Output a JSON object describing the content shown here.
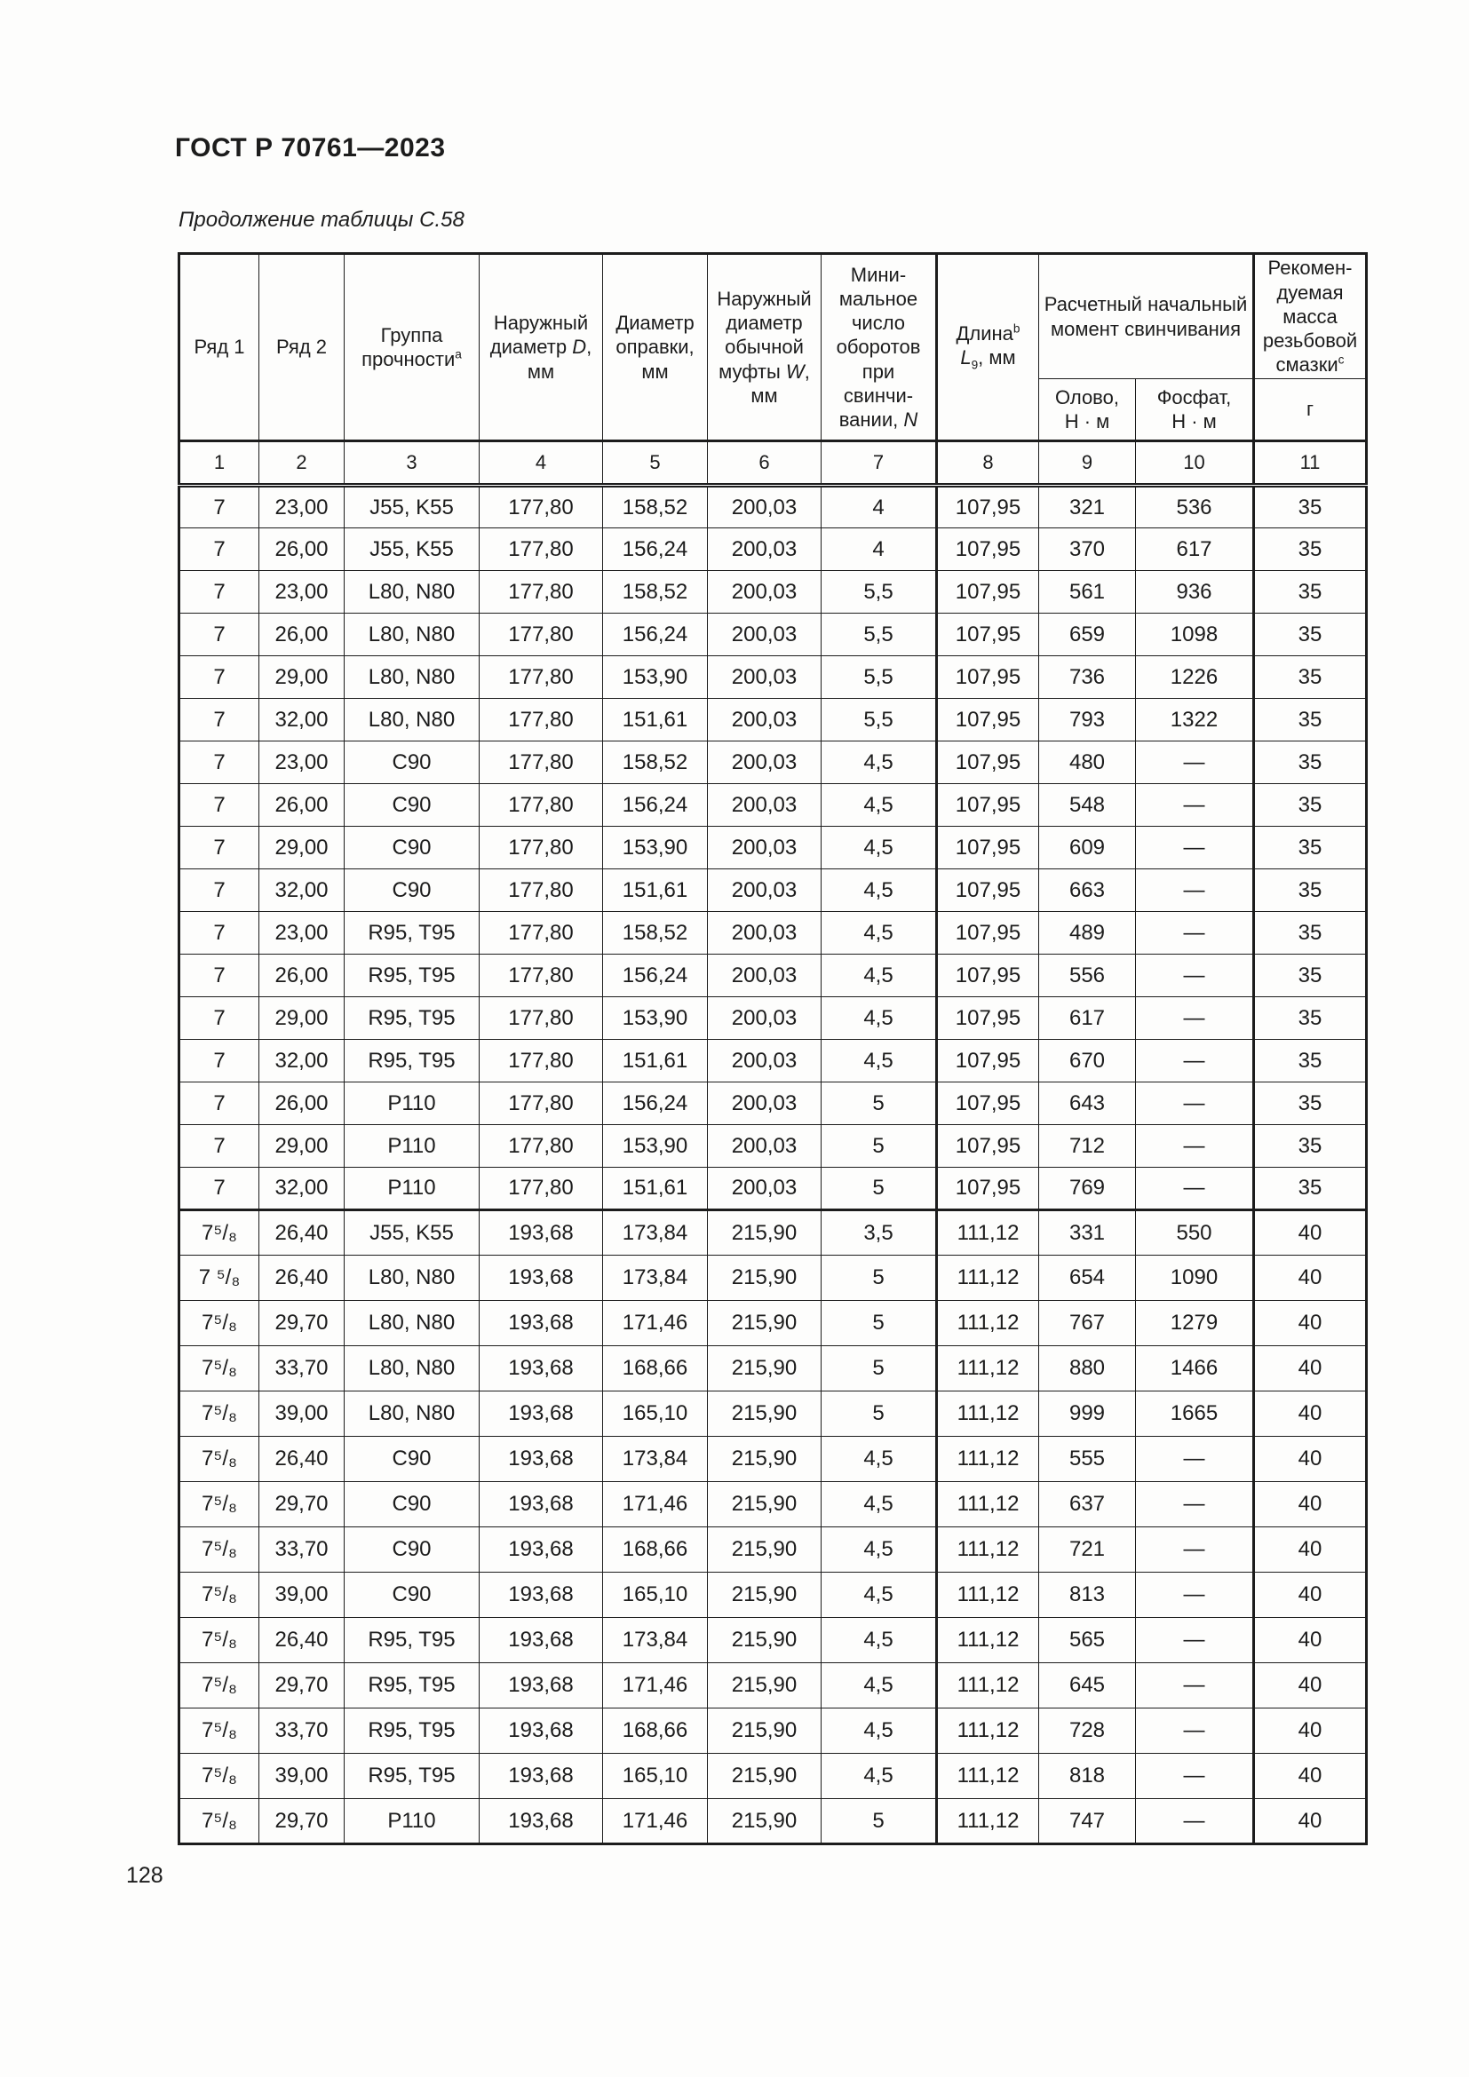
{
  "doc": {
    "header": "ГОСТ Р 70761—2023",
    "caption": "Продолжение таблицы С.58",
    "page_number": "128"
  },
  "table": {
    "headers": {
      "row1": "Ряд 1",
      "row2": "Ряд 2",
      "group_main": "Группа прочности",
      "group_sup": "a",
      "outer_d_pre": "Наружный диаметр ",
      "outer_d_var": "D",
      "outer_d_post": ", мм",
      "mandrel": "Диаметр оправки, мм",
      "coupling_pre": "Наружный диаметр обычной муфты ",
      "coupling_var": "W",
      "coupling_post": ", мм",
      "turns_pre": "Мини-\nмальное\nчисло\nоборотов\nпри\nсвинчи-\nвании, ",
      "turns_var": "N",
      "length_main": "Длина",
      "length_sup": "b",
      "length_var": "L",
      "length_sub": "9",
      "length_post": ", мм",
      "torque_group": "Расчетный начальный момент свинчивания",
      "tin": "Олово,\nН · м",
      "phosphate": "Фосфат,\nН · м",
      "grease_main": "Рекомен-\nдуемая\nмасса\nрезьбовой\nсмазки",
      "grease_sup": "c",
      "grease_unit": "г"
    },
    "column_numbers": [
      "1",
      "2",
      "3",
      "4",
      "5",
      "6",
      "7",
      "8",
      "9",
      "10",
      "11"
    ],
    "sections": [
      {
        "rows": [
          [
            "7",
            "23,00",
            "J55, K55",
            "177,80",
            "158,52",
            "200,03",
            "4",
            "107,95",
            "321",
            "536",
            "35"
          ],
          [
            "7",
            "26,00",
            "J55, K55",
            "177,80",
            "156,24",
            "200,03",
            "4",
            "107,95",
            "370",
            "617",
            "35"
          ],
          [
            "7",
            "23,00",
            "L80, N80",
            "177,80",
            "158,52",
            "200,03",
            "5,5",
            "107,95",
            "561",
            "936",
            "35"
          ],
          [
            "7",
            "26,00",
            "L80, N80",
            "177,80",
            "156,24",
            "200,03",
            "5,5",
            "107,95",
            "659",
            "1098",
            "35"
          ],
          [
            "7",
            "29,00",
            "L80, N80",
            "177,80",
            "153,90",
            "200,03",
            "5,5",
            "107,95",
            "736",
            "1226",
            "35"
          ],
          [
            "7",
            "32,00",
            "L80, N80",
            "177,80",
            "151,61",
            "200,03",
            "5,5",
            "107,95",
            "793",
            "1322",
            "35"
          ],
          [
            "7",
            "23,00",
            "C90",
            "177,80",
            "158,52",
            "200,03",
            "4,5",
            "107,95",
            "480",
            "—",
            "35"
          ],
          [
            "7",
            "26,00",
            "C90",
            "177,80",
            "156,24",
            "200,03",
            "4,5",
            "107,95",
            "548",
            "—",
            "35"
          ],
          [
            "7",
            "29,00",
            "C90",
            "177,80",
            "153,90",
            "200,03",
            "4,5",
            "107,95",
            "609",
            "—",
            "35"
          ],
          [
            "7",
            "32,00",
            "C90",
            "177,80",
            "151,61",
            "200,03",
            "4,5",
            "107,95",
            "663",
            "—",
            "35"
          ],
          [
            "7",
            "23,00",
            "R95, T95",
            "177,80",
            "158,52",
            "200,03",
            "4,5",
            "107,95",
            "489",
            "—",
            "35"
          ],
          [
            "7",
            "26,00",
            "R95, T95",
            "177,80",
            "156,24",
            "200,03",
            "4,5",
            "107,95",
            "556",
            "—",
            "35"
          ],
          [
            "7",
            "29,00",
            "R95, T95",
            "177,80",
            "153,90",
            "200,03",
            "4,5",
            "107,95",
            "617",
            "—",
            "35"
          ],
          [
            "7",
            "32,00",
            "R95, T95",
            "177,80",
            "151,61",
            "200,03",
            "4,5",
            "107,95",
            "670",
            "—",
            "35"
          ],
          [
            "7",
            "26,00",
            "P110",
            "177,80",
            "156,24",
            "200,03",
            "5",
            "107,95",
            "643",
            "—",
            "35"
          ],
          [
            "7",
            "29,00",
            "P110",
            "177,80",
            "153,90",
            "200,03",
            "5",
            "107,95",
            "712",
            "—",
            "35"
          ],
          [
            "7",
            "32,00",
            "P110",
            "177,80",
            "151,61",
            "200,03",
            "5",
            "107,95",
            "769",
            "—",
            "35"
          ]
        ]
      },
      {
        "rows": [
          [
            "7⁵/₈",
            "26,40",
            "J55, K55",
            "193,68",
            "173,84",
            "215,90",
            "3,5",
            "111,12",
            "331",
            "550",
            "40"
          ],
          [
            "7 ⁵/₈",
            "26,40",
            "L80, N80",
            "193,68",
            "173,84",
            "215,90",
            "5",
            "111,12",
            "654",
            "1090",
            "40"
          ],
          [
            "7⁵/₈",
            "29,70",
            "L80, N80",
            "193,68",
            "171,46",
            "215,90",
            "5",
            "111,12",
            "767",
            "1279",
            "40"
          ],
          [
            "7⁵/₈",
            "33,70",
            "L80, N80",
            "193,68",
            "168,66",
            "215,90",
            "5",
            "111,12",
            "880",
            "1466",
            "40"
          ],
          [
            "7⁵/₈",
            "39,00",
            "L80, N80",
            "193,68",
            "165,10",
            "215,90",
            "5",
            "111,12",
            "999",
            "1665",
            "40"
          ],
          [
            "7⁵/₈",
            "26,40",
            "C90",
            "193,68",
            "173,84",
            "215,90",
            "4,5",
            "111,12",
            "555",
            "—",
            "40"
          ],
          [
            "7⁵/₈",
            "29,70",
            "C90",
            "193,68",
            "171,46",
            "215,90",
            "4,5",
            "111,12",
            "637",
            "—",
            "40"
          ],
          [
            "7⁵/₈",
            "33,70",
            "C90",
            "193,68",
            "168,66",
            "215,90",
            "4,5",
            "111,12",
            "721",
            "—",
            "40"
          ],
          [
            "7⁵/₈",
            "39,00",
            "C90",
            "193,68",
            "165,10",
            "215,90",
            "4,5",
            "111,12",
            "813",
            "—",
            "40"
          ],
          [
            "7⁵/₈",
            "26,40",
            "R95, T95",
            "193,68",
            "173,84",
            "215,90",
            "4,5",
            "111,12",
            "565",
            "—",
            "40"
          ],
          [
            "7⁵/₈",
            "29,70",
            "R95, T95",
            "193,68",
            "171,46",
            "215,90",
            "4,5",
            "111,12",
            "645",
            "—",
            "40"
          ],
          [
            "7⁵/₈",
            "33,70",
            "R95, T95",
            "193,68",
            "168,66",
            "215,90",
            "4,5",
            "111,12",
            "728",
            "—",
            "40"
          ],
          [
            "7⁵/₈",
            "39,00",
            "R95, T95",
            "193,68",
            "165,10",
            "215,90",
            "4,5",
            "111,12",
            "818",
            "—",
            "40"
          ],
          [
            "7⁵/₈",
            "29,70",
            "P110",
            "193,68",
            "171,46",
            "215,90",
            "5",
            "111,12",
            "747",
            "—",
            "40"
          ]
        ]
      }
    ]
  }
}
